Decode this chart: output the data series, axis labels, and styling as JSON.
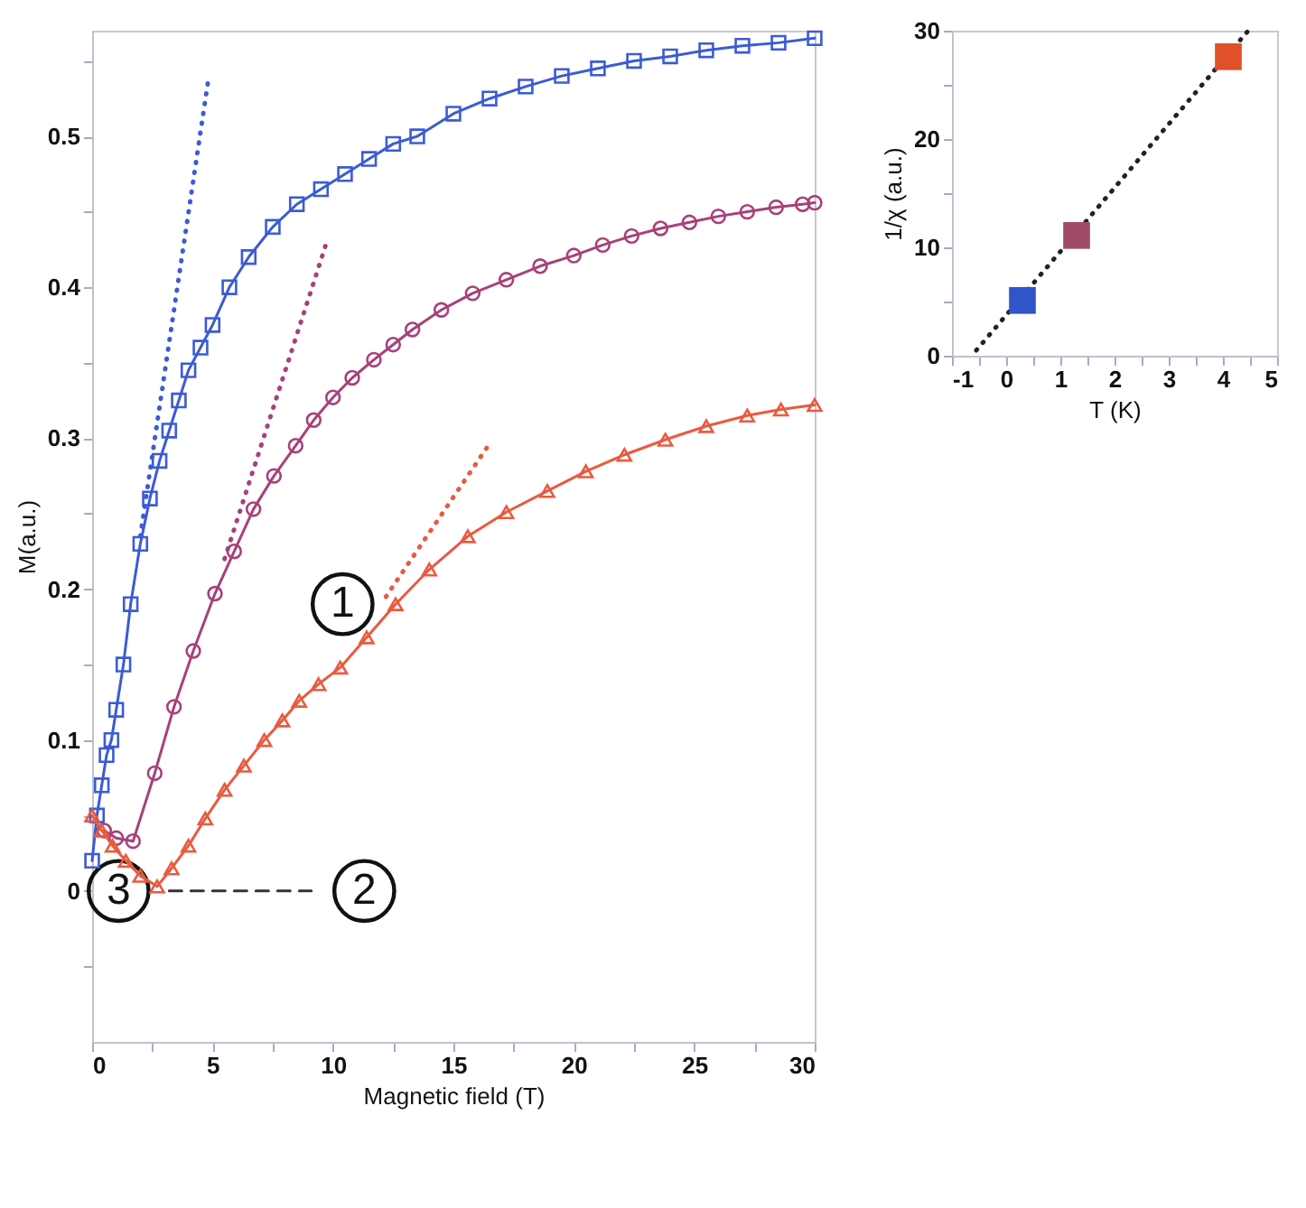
{
  "chart_data": [
    {
      "type": "line",
      "xlabel": "Magnetic field (T)",
      "ylabel": "M(a.u.)",
      "xlim": [
        0,
        30
      ],
      "xticks": [
        0,
        {
          "value": 2.5,
          "label": null
        },
        5,
        {
          "value": 7.5,
          "label": null
        },
        10,
        {
          "value": 12.5,
          "label": null
        },
        15,
        {
          "value": 17.5,
          "label": null
        },
        20,
        {
          "value": 22.5,
          "label": null
        },
        25,
        {
          "value": 27.5,
          "label": null
        },
        30
      ],
      "ylim": [
        -0.1,
        0.57
      ],
      "yticks": [
        {
          "value": -0.05,
          "label": null
        },
        0,
        {
          "value": 0.05,
          "label": null
        },
        0.1,
        {
          "value": 0.15,
          "label": null
        },
        0.2,
        {
          "value": 0.25,
          "label": null
        },
        0.3,
        {
          "value": 0.35,
          "label": null
        },
        0.4,
        {
          "value": 0.45,
          "label": null
        },
        0.5,
        {
          "value": 0.55,
          "label": null
        }
      ],
      "series": [
        {
          "color": "#3b5bd6",
          "marker": "square",
          "line_style": "solid",
          "x": [
            0,
            0.2,
            0.4,
            0.6,
            0.8,
            1.0,
            1.3,
            1.6,
            2.0,
            2.4,
            2.8,
            3.2,
            3.6,
            4.0,
            4.5,
            5,
            5.7,
            6.5,
            7.5,
            8.5,
            9.5,
            10.5,
            11.5,
            12.5,
            13.5,
            15,
            16.5,
            18,
            19.5,
            21,
            22.5,
            24,
            25.5,
            27,
            28.5,
            30
          ],
          "values": [
            0.02,
            0.05,
            0.07,
            0.09,
            0.1,
            0.12,
            0.15,
            0.19,
            0.23,
            0.26,
            0.285,
            0.305,
            0.325,
            0.345,
            0.36,
            0.375,
            0.4,
            0.42,
            0.44,
            0.455,
            0.465,
            0.475,
            0.485,
            0.495,
            0.5,
            0.515,
            0.525,
            0.533,
            0.54,
            0.545,
            0.55,
            0.553,
            0.557,
            0.56,
            0.562,
            0.565
          ]
        },
        {
          "color": "#a8407a",
          "marker": "circle",
          "line_style": "solid",
          "x": [
            0.5,
            1.0,
            1.7,
            2.6,
            3.4,
            4.2,
            5.1,
            5.9,
            6.7,
            7.55,
            8.45,
            9.2,
            10.0,
            10.8,
            11.7,
            12.5,
            13.3,
            14.5,
            15.8,
            17.2,
            18.6,
            20,
            21.2,
            22.4,
            23.6,
            24.8,
            26,
            27.2,
            28.4,
            29.5,
            30
          ],
          "values": [
            0.04,
            0.035,
            0.033,
            0.078,
            0.122,
            0.159,
            0.197,
            0.225,
            0.253,
            0.275,
            0.295,
            0.312,
            0.327,
            0.34,
            0.352,
            0.362,
            0.372,
            0.385,
            0.396,
            0.405,
            0.414,
            0.421,
            0.428,
            0.434,
            0.439,
            0.443,
            0.447,
            0.45,
            0.453,
            0.455,
            0.456
          ]
        },
        {
          "color": "#ea5a3e",
          "marker": "triangle",
          "line_style": "solid",
          "x": [
            0,
            0.4,
            0.85,
            1.4,
            2.0,
            2.7,
            3.3,
            4.0,
            4.7,
            5.5,
            6.3,
            7.15,
            7.9,
            8.6,
            9.4,
            10.3,
            11.4,
            12.6,
            14.0,
            15.6,
            17.2,
            18.9,
            20.5,
            22.1,
            23.8,
            25.5,
            27.2,
            28.6,
            30
          ],
          "values": [
            0.05,
            0.04,
            0.03,
            0.02,
            0.01,
            0.003,
            0.015,
            0.03,
            0.048,
            0.067,
            0.083,
            0.1,
            0.113,
            0.126,
            0.137,
            0.148,
            0.168,
            0.19,
            0.213,
            0.235,
            0.251,
            0.265,
            0.278,
            0.289,
            0.299,
            0.308,
            0.315,
            0.319,
            0.322
          ]
        },
        {
          "color": "#3b5bd6",
          "marker": "none",
          "line_style": "dotted",
          "x": [
            2.0,
            4.8
          ],
          "values": [
            0.235,
            0.535
          ]
        },
        {
          "color": "#a8407a",
          "marker": "none",
          "line_style": "dotted",
          "x": [
            5.5,
            9.7
          ],
          "values": [
            0.22,
            0.428
          ]
        },
        {
          "color": "#ea5a3e",
          "marker": "none",
          "line_style": "dotted",
          "x": [
            12.2,
            16.4
          ],
          "values": [
            0.195,
            0.294
          ]
        },
        {
          "color": "#333333",
          "marker": "none",
          "line_style": "dashed",
          "x": [
            3.2,
            9.1
          ],
          "values": [
            0,
            0
          ]
        }
      ],
      "annotations": [
        {
          "text": "1",
          "x": 10.4,
          "y": 0.19
        },
        {
          "text": "2",
          "x": 11.3,
          "y": 0
        },
        {
          "text": "3",
          "x": 1.1,
          "y": 0
        }
      ]
    },
    {
      "type": "scatter",
      "xlabel": "T (K)",
      "ylabel": "1/χ (a.u.)",
      "xlim": [
        -1,
        5
      ],
      "xticks": [
        -1,
        {
          "value": -0.5,
          "label": null
        },
        0,
        {
          "value": 0.5,
          "label": null
        },
        1,
        {
          "value": 1.5,
          "label": null
        },
        2,
        {
          "value": 2.5,
          "label": null
        },
        3,
        {
          "value": 3.5,
          "label": null
        },
        4,
        {
          "value": 4.5,
          "label": null
        },
        5
      ],
      "ylim": [
        0,
        30
      ],
      "yticks": [
        0,
        {
          "value": 5,
          "label": null
        },
        10,
        {
          "value": 15,
          "label": null
        },
        20,
        {
          "value": 25,
          "label": null
        },
        30
      ],
      "series": [
        {
          "type": "line",
          "color": "#222222",
          "marker": "none",
          "line_style": "dotted",
          "x": [
            -0.55,
            4.45
          ],
          "values": [
            0.5,
            29.9
          ]
        },
        {
          "type": "scatter",
          "marker": "square",
          "x": [
            0.3,
            1.3,
            4.1
          ],
          "values": [
            5.1,
            11.1,
            27.6
          ],
          "colors": [
            "#2f55c8",
            "#a04a6a",
            "#e0502a"
          ]
        }
      ]
    }
  ]
}
